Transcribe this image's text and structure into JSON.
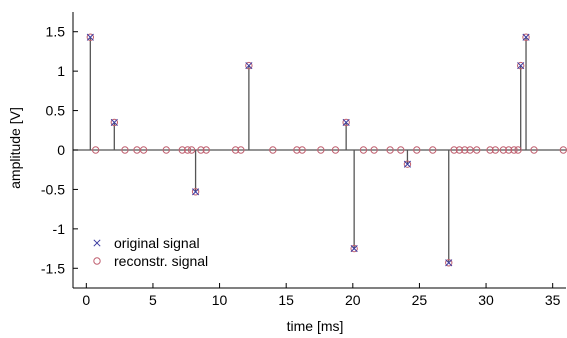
{
  "chart_data": {
    "type": "scatter",
    "title": "",
    "xlabel": "time [ms]",
    "ylabel": "amplitude [V]",
    "xlim": [
      -1,
      36
    ],
    "ylim": [
      -1.75,
      1.75
    ],
    "x_ticks": [
      0,
      5,
      10,
      15,
      20,
      25,
      30,
      35
    ],
    "x_tick_labels": [
      "0",
      "5",
      "10",
      "15",
      "20",
      "25",
      "30",
      "35"
    ],
    "y_ticks": [
      1.5,
      1,
      0.5,
      0,
      -0.5,
      -1,
      -1.5
    ],
    "y_tick_labels": [
      "1.5",
      "1",
      "0.5",
      "0",
      "-0.5",
      "-1",
      "-1.5"
    ],
    "grid": false,
    "legend_position": "bottom-left",
    "colors": {
      "original": "#3a3aa0",
      "reconstructed": "#c06070",
      "stem": "#555555",
      "axis": "#000000"
    },
    "series": [
      {
        "name": "original signal",
        "marker": "x",
        "points": [
          {
            "x": 0.3,
            "y": 1.43
          },
          {
            "x": 2.1,
            "y": 0.35
          },
          {
            "x": 8.2,
            "y": -0.53
          },
          {
            "x": 12.2,
            "y": 1.07
          },
          {
            "x": 19.5,
            "y": 0.35
          },
          {
            "x": 20.1,
            "y": -1.25
          },
          {
            "x": 24.1,
            "y": -0.18
          },
          {
            "x": 27.2,
            "y": -1.43
          },
          {
            "x": 32.6,
            "y": 1.07
          },
          {
            "x": 33.0,
            "y": 1.43
          }
        ]
      },
      {
        "name": "reconstr. signal",
        "marker": "o",
        "points": [
          {
            "x": 0.3,
            "y": 1.43
          },
          {
            "x": 0.7,
            "y": 0
          },
          {
            "x": 2.1,
            "y": 0.35
          },
          {
            "x": 2.9,
            "y": 0
          },
          {
            "x": 3.8,
            "y": 0
          },
          {
            "x": 4.3,
            "y": 0
          },
          {
            "x": 6.0,
            "y": 0
          },
          {
            "x": 7.2,
            "y": 0
          },
          {
            "x": 7.6,
            "y": 0
          },
          {
            "x": 7.9,
            "y": 0
          },
          {
            "x": 8.2,
            "y": -0.53
          },
          {
            "x": 8.6,
            "y": 0
          },
          {
            "x": 9.0,
            "y": 0
          },
          {
            "x": 11.2,
            "y": 0
          },
          {
            "x": 11.6,
            "y": 0
          },
          {
            "x": 12.2,
            "y": 1.07
          },
          {
            "x": 14.0,
            "y": 0
          },
          {
            "x": 15.8,
            "y": 0
          },
          {
            "x": 16.2,
            "y": 0
          },
          {
            "x": 17.6,
            "y": 0
          },
          {
            "x": 18.7,
            "y": 0
          },
          {
            "x": 19.5,
            "y": 0.35
          },
          {
            "x": 20.1,
            "y": -1.25
          },
          {
            "x": 20.8,
            "y": 0
          },
          {
            "x": 21.6,
            "y": 0
          },
          {
            "x": 22.8,
            "y": 0
          },
          {
            "x": 23.6,
            "y": 0
          },
          {
            "x": 24.1,
            "y": -0.18
          },
          {
            "x": 24.8,
            "y": 0
          },
          {
            "x": 26.0,
            "y": 0
          },
          {
            "x": 27.2,
            "y": -1.43
          },
          {
            "x": 27.6,
            "y": 0
          },
          {
            "x": 28.0,
            "y": 0
          },
          {
            "x": 28.4,
            "y": 0
          },
          {
            "x": 28.8,
            "y": 0
          },
          {
            "x": 29.3,
            "y": 0
          },
          {
            "x": 30.3,
            "y": 0
          },
          {
            "x": 30.7,
            "y": 0
          },
          {
            "x": 31.3,
            "y": 0
          },
          {
            "x": 31.7,
            "y": 0
          },
          {
            "x": 32.1,
            "y": 0
          },
          {
            "x": 32.4,
            "y": 0
          },
          {
            "x": 32.6,
            "y": 1.07
          },
          {
            "x": 33.0,
            "y": 1.43
          },
          {
            "x": 33.6,
            "y": 0
          },
          {
            "x": 35.8,
            "y": 0
          }
        ]
      }
    ],
    "stems": [
      0.3,
      2.1,
      8.2,
      12.2,
      19.5,
      20.1,
      24.1,
      27.2,
      32.6,
      33.0
    ]
  }
}
